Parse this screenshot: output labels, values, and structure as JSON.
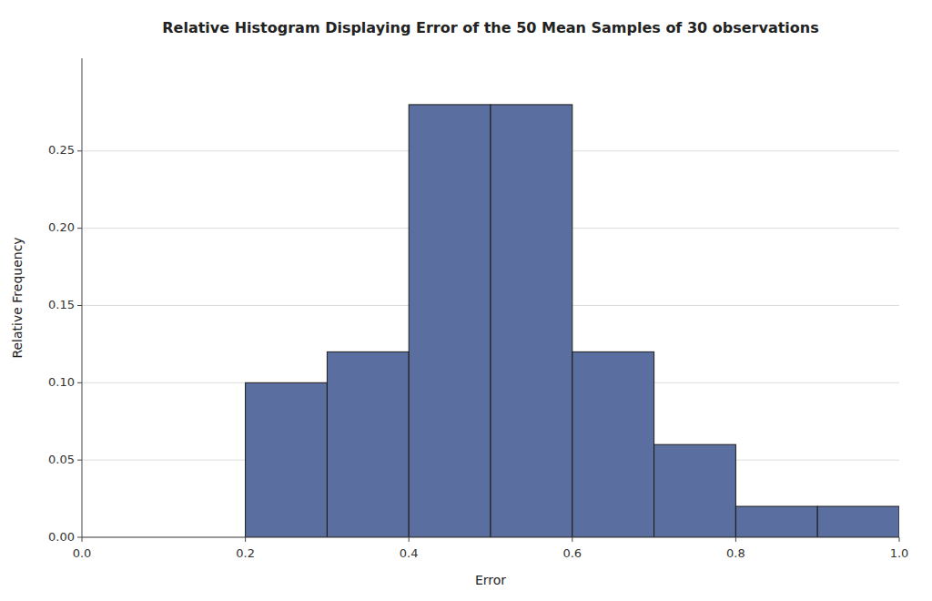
{
  "chart_data": {
    "type": "histogram",
    "title": "Relative Histogram Displaying Error of the 50 Mean Samples of 30 observations",
    "xlabel": "Error",
    "ylabel": "Relative Frequency",
    "bins": [
      0.2,
      0.3,
      0.4,
      0.5,
      0.6,
      0.7,
      0.8,
      0.9,
      1.0
    ],
    "values": [
      0.1,
      0.12,
      0.28,
      0.28,
      0.12,
      0.06,
      0.02,
      0.02
    ],
    "color": "#5a6fa0",
    "xlim": [
      0,
      1.0
    ],
    "ylim": [
      0,
      0.31
    ],
    "xticks": [
      {
        "value": 0,
        "label": "0.0"
      },
      0.2,
      0.4,
      0.6,
      0.8,
      {
        "value": 1.0,
        "label": "1.0"
      }
    ],
    "yticks": [
      {
        "value": 0,
        "label": "0.00"
      },
      0.05,
      {
        "value": 0.1,
        "label": "0.10"
      },
      0.15,
      {
        "value": 0.2,
        "label": "0.20"
      },
      0.25
    ],
    "grid": true
  }
}
